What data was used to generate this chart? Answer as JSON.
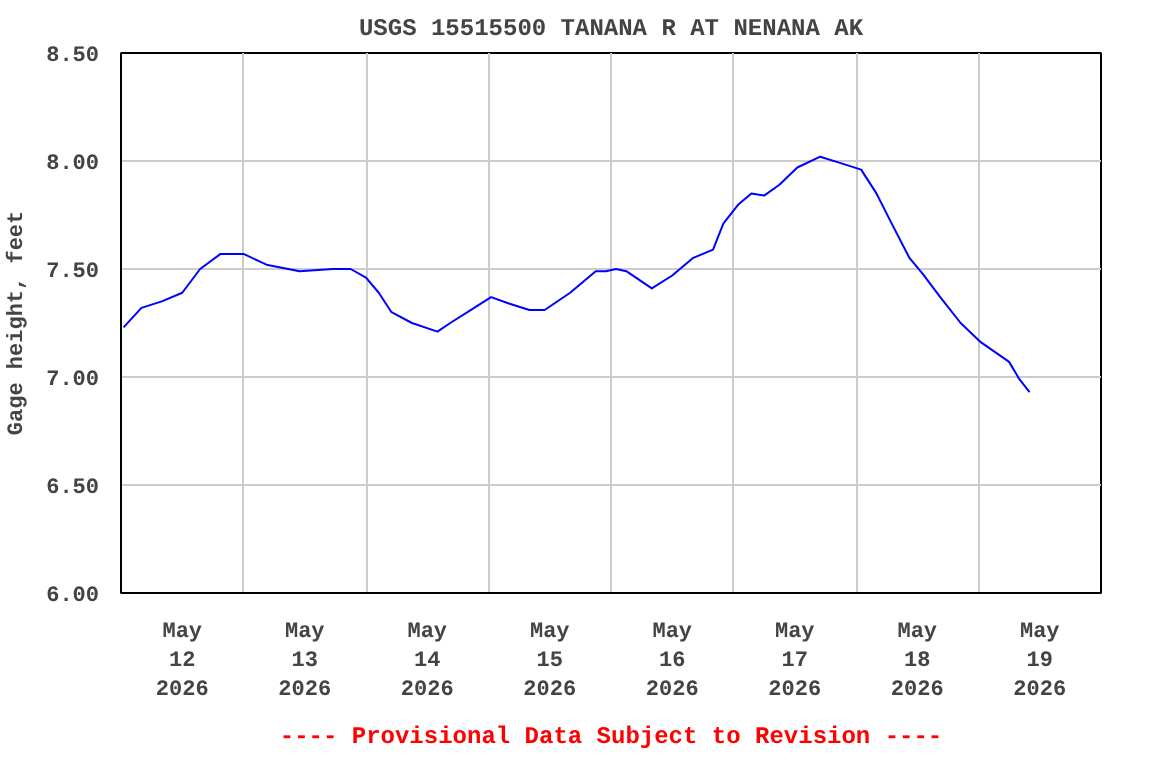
{
  "chart_data": {
    "type": "line",
    "title": "USGS 15515500 TANANA R AT NENANA AK",
    "ylabel": "Gage height, feet",
    "annotations": [
      "---- Provisional Data Subject to Revision ----"
    ],
    "x": [
      "2026-05-12T00:30",
      "2026-05-12T04:00",
      "2026-05-12T08:00",
      "2026-05-12T12:00",
      "2026-05-12T15:30",
      "2026-05-12T19:30",
      "2026-05-13T00:00",
      "2026-05-13T04:30",
      "2026-05-13T11:00",
      "2026-05-13T17:30",
      "2026-05-13T21:00",
      "2026-05-14T00:00",
      "2026-05-14T02:30",
      "2026-05-14T05:00",
      "2026-05-14T09:00",
      "2026-05-14T14:00",
      "2026-05-14T16:30",
      "2026-05-14T20:30",
      "2026-05-15T00:30",
      "2026-05-15T04:00",
      "2026-05-15T08:00",
      "2026-05-15T11:00",
      "2026-05-15T16:00",
      "2026-05-15T21:00",
      "2026-05-15T23:00",
      "2026-05-16T01:00",
      "2026-05-16T03:00",
      "2026-05-16T08:00",
      "2026-05-16T12:00",
      "2026-05-16T16:00",
      "2026-05-16T20:00",
      "2026-05-16T22:00",
      "2026-05-17T01:00",
      "2026-05-17T03:30",
      "2026-05-17T06:00",
      "2026-05-17T09:00",
      "2026-05-17T12:30",
      "2026-05-17T17:00",
      "2026-05-17T21:00",
      "2026-05-18T01:00",
      "2026-05-18T04:00",
      "2026-05-18T07:00",
      "2026-05-18T10:30",
      "2026-05-18T13:00",
      "2026-05-18T16:30",
      "2026-05-18T20:30",
      "2026-05-19T00:30",
      "2026-05-19T06:00",
      "2026-05-19T08:00",
      "2026-05-19T10:00"
    ],
    "series": [
      {
        "color": "#0000ff",
        "values": [
          7.23,
          7.32,
          7.35,
          7.39,
          7.5,
          7.57,
          7.57,
          7.52,
          7.49,
          7.5,
          7.5,
          7.46,
          7.39,
          7.3,
          7.25,
          7.21,
          7.25,
          7.31,
          7.37,
          7.34,
          7.31,
          7.31,
          7.39,
          7.49,
          7.49,
          7.5,
          7.49,
          7.41,
          7.47,
          7.55,
          7.59,
          7.71,
          7.8,
          7.85,
          7.84,
          7.89,
          7.97,
          8.02,
          7.99,
          7.96,
          7.85,
          7.71,
          7.55,
          7.48,
          7.37,
          7.25,
          7.16,
          7.07,
          6.99,
          6.93
        ]
      }
    ],
    "xlim": [
      "2026-05-12",
      "2026-05-20"
    ],
    "xticks": [
      {
        "value": "2026-05-12",
        "label": null
      },
      {
        "value": "2026-05-12T12:00",
        "label": "May\n12\n2026"
      },
      {
        "value": "2026-05-13",
        "label": null
      },
      {
        "value": "2026-05-13T12:00",
        "label": "May\n13\n2026"
      },
      {
        "value": "2026-05-14",
        "label": null
      },
      {
        "value": "2026-05-14T12:00",
        "label": "May\n14\n2026"
      },
      {
        "value": "2026-05-15",
        "label": null
      },
      {
        "value": "2026-05-15T12:00",
        "label": "May\n15\n2026"
      },
      {
        "value": "2026-05-16",
        "label": null
      },
      {
        "value": "2026-05-16T12:00",
        "label": "May\n16\n2026"
      },
      {
        "value": "2026-05-17",
        "label": null
      },
      {
        "value": "2026-05-17T12:00",
        "label": "May\n17\n2026"
      },
      {
        "value": "2026-05-18",
        "label": null
      },
      {
        "value": "2026-05-18T12:00",
        "label": "May\n18\n2026"
      },
      {
        "value": "2026-05-19",
        "label": null
      },
      {
        "value": "2026-05-19T12:00",
        "label": "May\n19\n2026"
      },
      {
        "value": "2026-05-20",
        "label": null
      }
    ],
    "ylim": [
      6.0,
      8.5
    ],
    "yticks": [
      {
        "value": 6.0,
        "label": "6.00"
      },
      {
        "value": 6.5,
        "label": "6.50"
      },
      {
        "value": 7.0,
        "label": "7.00"
      },
      {
        "value": 7.5,
        "label": "7.50"
      },
      {
        "value": 8.0,
        "label": "8.00"
      },
      {
        "value": 8.5,
        "label": "8.50"
      }
    ],
    "grid": true
  }
}
